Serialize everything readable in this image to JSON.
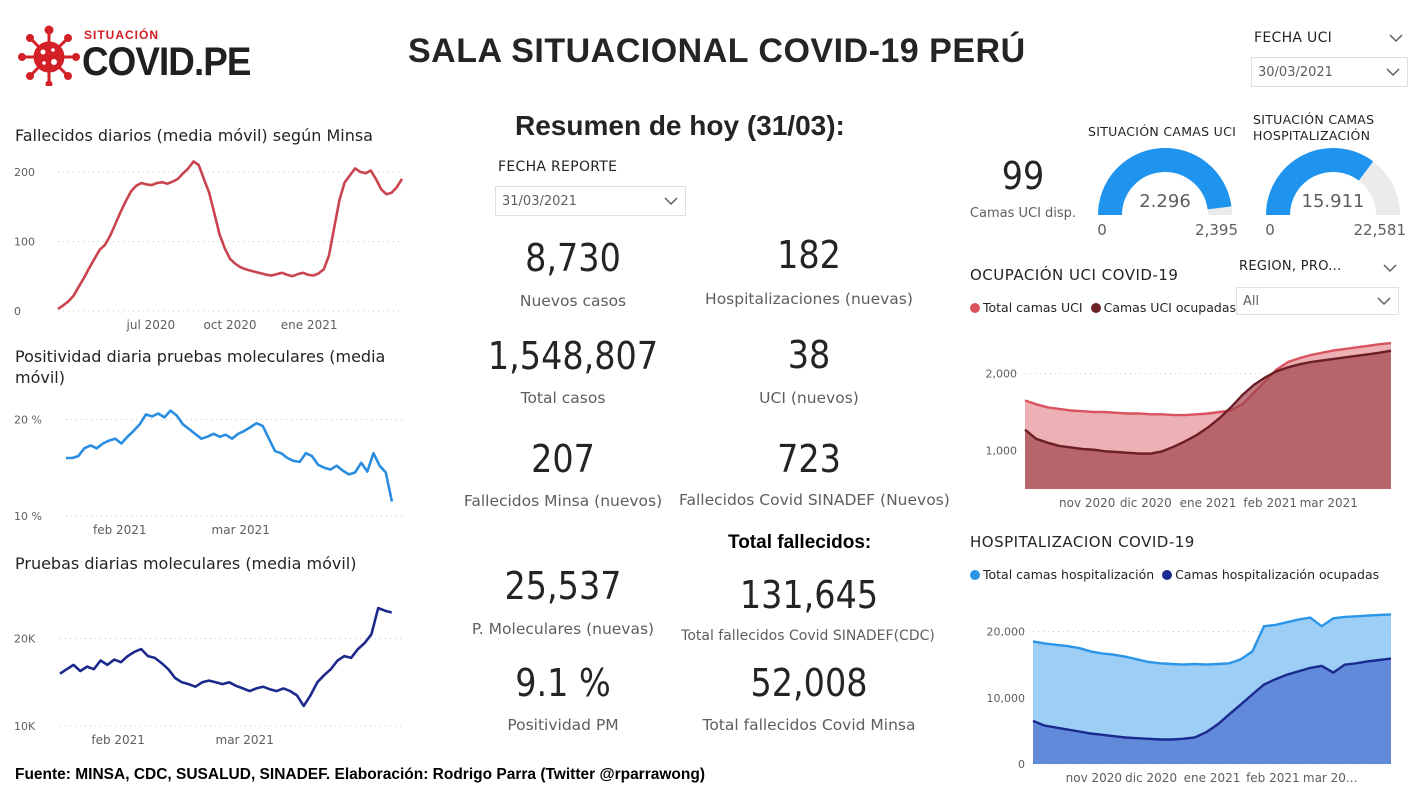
{
  "logo": {
    "small_text": "SITUACIÓN",
    "big_text": "COVID.PE"
  },
  "title": "SALA SITUACIONAL COVID-19 PERÚ",
  "fecha_uci": {
    "label": "FECHA UCI",
    "value": "30/03/2021"
  },
  "resumen": {
    "title": "Resumen de hoy (31/03):",
    "fecha_reporte_label": "FECHA REPORTE",
    "fecha_reporte_value": "31/03/2021"
  },
  "kpis": {
    "nuevos_casos": {
      "value": "8,730",
      "label": "Nuevos casos"
    },
    "hospitalizaciones": {
      "value": "182",
      "label": "Hospitalizaciones (nuevas)"
    },
    "total_casos": {
      "value": "1,548,807",
      "label": "Total casos"
    },
    "uci": {
      "value": "38",
      "label": "UCI (nuevos)"
    },
    "fallecidos_minsa": {
      "value": "207",
      "label": "Fallecidos Minsa (nuevos)"
    },
    "fallecidos_sinadef": {
      "value": "723",
      "label": "Fallecidos Covid SINADEF (Nuevos)"
    },
    "total_fallecidos_title": "Total fallecidos:",
    "p_moleculares": {
      "value": "25,537",
      "label": "P. Moleculares (nuevas)"
    },
    "total_sinadef": {
      "value": "131,645",
      "label": "Total fallecidos Covid SINADEF(CDC)"
    },
    "positividad": {
      "value": "9.1 %",
      "label": "Positividad PM"
    },
    "total_minsa": {
      "value": "52,008",
      "label": "Total fallecidos Covid Minsa"
    }
  },
  "camas_uci_disp": {
    "value": "99",
    "label": "Camas UCI disp."
  },
  "gauge_uci": {
    "title": "SITUACIÓN CAMAS UCI",
    "value": 2296,
    "value_label": "2.296",
    "min": "0",
    "max": "2,395",
    "max_num": 2395
  },
  "gauge_hosp": {
    "title_line1": "SITUACIÓN CAMAS",
    "title_line2": "HOSPITALIZACIÓN",
    "value": 15911,
    "value_label": "15.911",
    "min": "0",
    "max": "22,581",
    "max_num": 22581
  },
  "region_slicer": {
    "label": "REGION, PRO...",
    "value": "All"
  },
  "uci_section": {
    "title": "OCUPACIÓN UCI COVID-19",
    "legend": [
      "Total camas UCI",
      "Camas UCI ocupadas"
    ]
  },
  "hosp_section": {
    "title": "HOSPITALIZACION COVID-19",
    "legend": [
      "Total camas hospitalización",
      "Camas hospitalización ocupadas"
    ]
  },
  "footer": "Fuente: MINSA, CDC, SUSALUD, SINADEF. Elaboración: Rodrigo Parra (Twitter @rparrawong)",
  "colors": {
    "deaths_line": "#c9444f",
    "positivity_line": "#2b8de0",
    "tests_line": "#1c2a8c",
    "uci_total": "#d9535f",
    "uci_occ": "#6b1f25",
    "hosp_total": "#2b95e8",
    "hosp_occ": "#1b2a8f",
    "gauge_uci": "#1f94ef",
    "gauge_hosp": "#1f94ef"
  },
  "chart_data": [
    {
      "id": "deaths",
      "type": "line",
      "title": "Fallecidos diarios (media móvil) según Minsa",
      "xticks": [
        {
          "label": "jul 2020",
          "pos": 0.27
        },
        {
          "label": "oct 2020",
          "pos": 0.5
        },
        {
          "label": "ene 2021",
          "pos": 0.73
        }
      ],
      "yticks": [
        0,
        100,
        200
      ],
      "ylim": [
        0,
        220
      ],
      "values": [
        3,
        8,
        14,
        22,
        35,
        48,
        62,
        75,
        88,
        95,
        108,
        125,
        142,
        158,
        172,
        180,
        184,
        182,
        181,
        184,
        185,
        183,
        186,
        190,
        198,
        205,
        215,
        210,
        190,
        170,
        140,
        110,
        90,
        75,
        68,
        63,
        60,
        58,
        56,
        54,
        52,
        51,
        53,
        55,
        52,
        50,
        53,
        55,
        52,
        51,
        54,
        60,
        80,
        120,
        160,
        185,
        195,
        205,
        200,
        198,
        202,
        190,
        175,
        168,
        170,
        178,
        190
      ]
    },
    {
      "id": "positivity",
      "type": "line",
      "title": "Positividad diaria pruebas moleculares (media móvil)",
      "xticks": [
        {
          "label": "feb 2021",
          "pos": 0.16
        },
        {
          "label": "mar 2021",
          "pos": 0.52
        }
      ],
      "yticks": [
        {
          "v": 10,
          "label": "10 %"
        },
        {
          "v": 20,
          "label": "20 %"
        }
      ],
      "ylim": [
        10,
        22
      ],
      "values": [
        16,
        16,
        16.2,
        17,
        17.3,
        17,
        17.5,
        17.8,
        18,
        17.5,
        18.2,
        18.8,
        19.5,
        20.5,
        20.3,
        20.6,
        20.2,
        20.9,
        20.4,
        19.5,
        19,
        18.5,
        18,
        18.2,
        18.5,
        18.2,
        18.4,
        18,
        18.5,
        18.8,
        19.2,
        19.6,
        19.3,
        18,
        16.7,
        16.5,
        16,
        15.7,
        15.6,
        16.5,
        16.2,
        15.3,
        15,
        14.8,
        15.2,
        14.7,
        14.3,
        14.5,
        15.5,
        14.6,
        16.5,
        15.2,
        14.5,
        11.5
      ]
    },
    {
      "id": "tests",
      "type": "line",
      "title": "Pruebas diarias moleculares (media móvil)",
      "xticks": [
        {
          "label": "feb 2021",
          "pos": 0.17
        },
        {
          "label": "mar 2021",
          "pos": 0.54
        }
      ],
      "yticks": [
        {
          "v": 10000,
          "label": "10K"
        },
        {
          "v": 20000,
          "label": "20K"
        }
      ],
      "ylim": [
        10000,
        25000
      ],
      "values": [
        16000,
        16500,
        17000,
        16300,
        16800,
        16500,
        17500,
        17000,
        17600,
        17300,
        18000,
        18500,
        18800,
        18000,
        17800,
        17200,
        16500,
        15500,
        15000,
        14800,
        14500,
        15000,
        15200,
        15000,
        14800,
        15000,
        14600,
        14300,
        14000,
        14300,
        14500,
        14200,
        14000,
        14300,
        14000,
        13500,
        12300,
        13500,
        15000,
        15800,
        16500,
        17500,
        18000,
        17800,
        18800,
        19500,
        20500,
        23500,
        23200,
        23000
      ]
    },
    {
      "id": "uci",
      "type": "area",
      "title": "OCUPACIÓN UCI COVID-19",
      "xticks": [
        {
          "label": "nov 2020",
          "pos": 0.17
        },
        {
          "label": "dic 2020",
          "pos": 0.33
        },
        {
          "label": "ene 2021",
          "pos": 0.5
        },
        {
          "label": "feb 2021",
          "pos": 0.67
        },
        {
          "label": "mar 2021",
          "pos": 0.83
        }
      ],
      "yticks": [
        {
          "v": 1000,
          "label": "1,000"
        },
        {
          "v": 2000,
          "label": "2,000"
        }
      ],
      "ylim": [
        500,
        2500
      ],
      "series": [
        {
          "name": "Total camas UCI",
          "values": [
            1650,
            1600,
            1560,
            1540,
            1520,
            1510,
            1500,
            1500,
            1490,
            1480,
            1480,
            1470,
            1470,
            1460,
            1460,
            1470,
            1480,
            1500,
            1520,
            1600,
            1750,
            1900,
            2050,
            2150,
            2200,
            2240,
            2270,
            2300,
            2320,
            2340,
            2360,
            2380,
            2395
          ]
        },
        {
          "name": "Camas UCI ocupadas",
          "values": [
            1270,
            1150,
            1100,
            1060,
            1040,
            1020,
            1010,
            990,
            980,
            970,
            960,
            960,
            990,
            1050,
            1120,
            1200,
            1300,
            1420,
            1560,
            1720,
            1850,
            1950,
            2030,
            2080,
            2120,
            2150,
            2170,
            2190,
            2210,
            2230,
            2250,
            2270,
            2296
          ]
        }
      ]
    },
    {
      "id": "hosp",
      "type": "area",
      "title": "HOSPITALIZACION COVID-19",
      "xticks": [
        {
          "label": "nov 2020",
          "pos": 0.17
        },
        {
          "label": "dic 2020",
          "pos": 0.33
        },
        {
          "label": "ene 2021",
          "pos": 0.5
        },
        {
          "label": "feb 2021",
          "pos": 0.67
        },
        {
          "label": "mar 20...",
          "pos": 0.83
        }
      ],
      "yticks": [
        {
          "v": 0,
          "label": "0"
        },
        {
          "v": 10000,
          "label": "10,000"
        },
        {
          "v": 20000,
          "label": "20,000"
        }
      ],
      "ylim": [
        0,
        24000
      ],
      "series": [
        {
          "name": "Total camas hospitalización",
          "values": [
            18500,
            18200,
            18000,
            17800,
            17500,
            17000,
            16700,
            16500,
            16200,
            15800,
            15400,
            15200,
            15100,
            15000,
            15100,
            15000,
            15100,
            15200,
            15800,
            17000,
            20800,
            21000,
            21400,
            21800,
            22100,
            20800,
            22000,
            22200,
            22300,
            22400,
            22500,
            22581
          ]
        },
        {
          "name": "Camas hospitalización ocupadas",
          "values": [
            6500,
            5800,
            5500,
            5200,
            4900,
            4600,
            4400,
            4200,
            4000,
            3900,
            3800,
            3700,
            3700,
            3800,
            4000,
            4800,
            6000,
            7500,
            9000,
            10500,
            12000,
            12800,
            13500,
            14000,
            14500,
            14800,
            13800,
            15000,
            15200,
            15500,
            15700,
            15911
          ]
        }
      ]
    }
  ]
}
